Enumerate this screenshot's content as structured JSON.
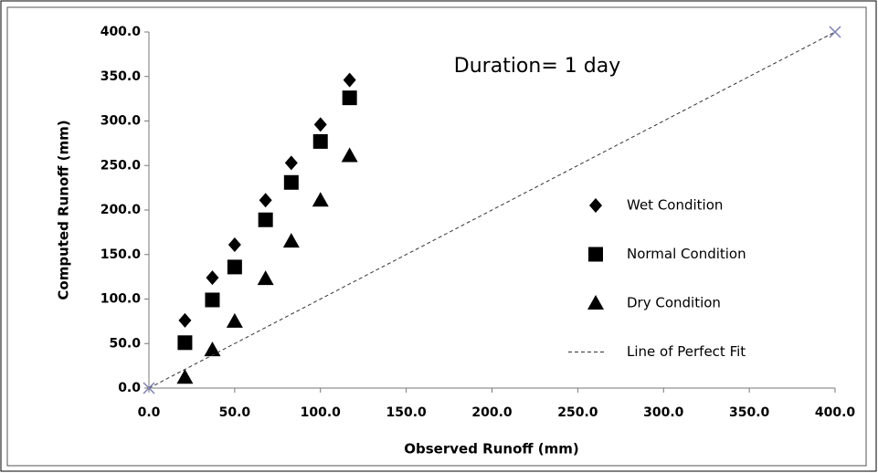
{
  "chart_data": {
    "type": "scatter",
    "annotation": "Duration= 1 day",
    "xlabel": "Observed Runoff (mm)",
    "ylabel": "Computed Runoff (mm)",
    "xlim": [
      0,
      400
    ],
    "ylim": [
      0,
      400
    ],
    "xticks": [
      {
        "value": 0,
        "label": "0.0"
      },
      {
        "value": 50,
        "label": "50.0"
      },
      {
        "value": 100,
        "label": "100.0"
      },
      {
        "value": 150,
        "label": "150.0"
      },
      {
        "value": 200,
        "label": "200.0"
      },
      {
        "value": 250,
        "label": "250.0"
      },
      {
        "value": 300,
        "label": "300.0"
      },
      {
        "value": 350,
        "label": "350.0"
      },
      {
        "value": 400,
        "label": "400.0"
      }
    ],
    "yticks": [
      {
        "value": 0,
        "label": "0.0"
      },
      {
        "value": 50,
        "label": "50.0"
      },
      {
        "value": 100,
        "label": "100.0"
      },
      {
        "value": 150,
        "label": "150.0"
      },
      {
        "value": 200,
        "label": "200.0"
      },
      {
        "value": 250,
        "label": "250.0"
      },
      {
        "value": 300,
        "label": "300.0"
      },
      {
        "value": 350,
        "label": "350.0"
      },
      {
        "value": 400,
        "label": "400.0"
      }
    ],
    "legend": "right",
    "series": [
      {
        "name": "Wet Condition",
        "marker": "diamond",
        "color": "#000000",
        "x": [
          21,
          37,
          50,
          68,
          83,
          100,
          117
        ],
        "values": [
          76,
          124,
          161,
          211,
          253,
          296,
          346
        ]
      },
      {
        "name": "Normal Condition",
        "marker": "square",
        "color": "#000000",
        "x": [
          21,
          37,
          50,
          68,
          83,
          100,
          117
        ],
        "values": [
          51,
          99,
          136,
          189,
          231,
          277,
          326
        ]
      },
      {
        "name": "Dry Condition",
        "marker": "triangle",
        "color": "#000000",
        "x": [
          21,
          37,
          50,
          68,
          83,
          100,
          117
        ],
        "values": [
          12,
          43,
          75,
          123,
          165,
          211,
          261
        ]
      },
      {
        "name": "Line of Perfect Fit",
        "marker": "x",
        "line": "dashed",
        "color": "#333333",
        "markercolor": "#7a7fb5",
        "x": [
          0,
          400
        ],
        "values": [
          0,
          400
        ]
      }
    ]
  }
}
